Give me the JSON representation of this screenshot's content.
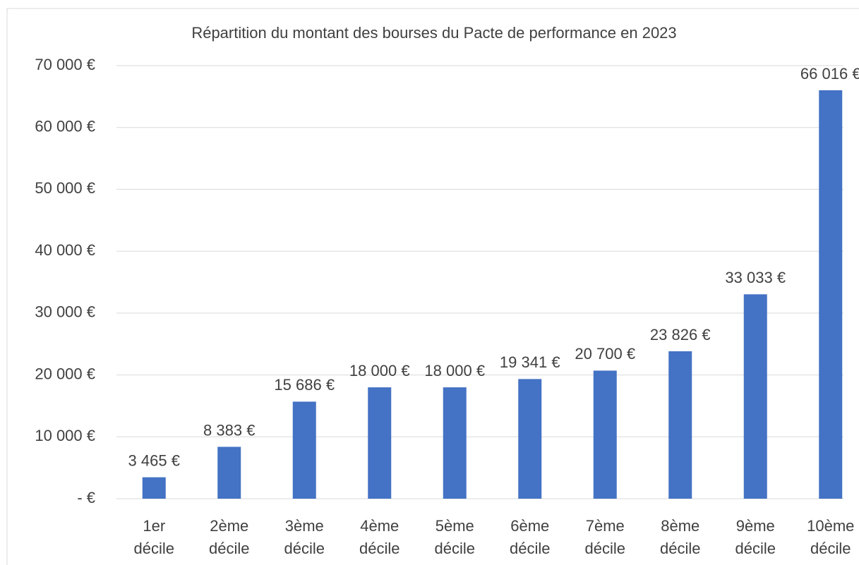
{
  "chart_data": {
    "type": "bar",
    "title": "Répartition du montant des bourses du Pacte de performance en 2023",
    "categories": [
      "1er décile",
      "2ème décile",
      "3ème décile",
      "4ème décile",
      "5ème décile",
      "6ème décile",
      "7ème décile",
      "8ème décile",
      "9ème décile",
      "10ème décile"
    ],
    "values": [
      3465,
      8383,
      15686,
      18000,
      18000,
      19341,
      20700,
      23826,
      33033,
      66016
    ],
    "value_labels": [
      "3 465 €",
      "8 383 €",
      "15 686 €",
      "18 000 €",
      "18 000 €",
      "19 341 €",
      "20 700 €",
      "23 826 €",
      "33 033 €",
      "66 016 €"
    ],
    "color": "#4472c4",
    "ylim": [
      0,
      70000
    ],
    "yticks": [
      {
        "value": 0,
        "label": "-   €"
      },
      {
        "value": 10000,
        "label": "10 000 €"
      },
      {
        "value": 20000,
        "label": "20 000 €"
      },
      {
        "value": 30000,
        "label": "30 000 €"
      },
      {
        "value": 40000,
        "label": "40 000 €"
      },
      {
        "value": 50000,
        "label": "50 000 €"
      },
      {
        "value": 60000,
        "label": "60 000 €"
      },
      {
        "value": 70000,
        "label": "70 000 €"
      }
    ],
    "grid": true
  }
}
